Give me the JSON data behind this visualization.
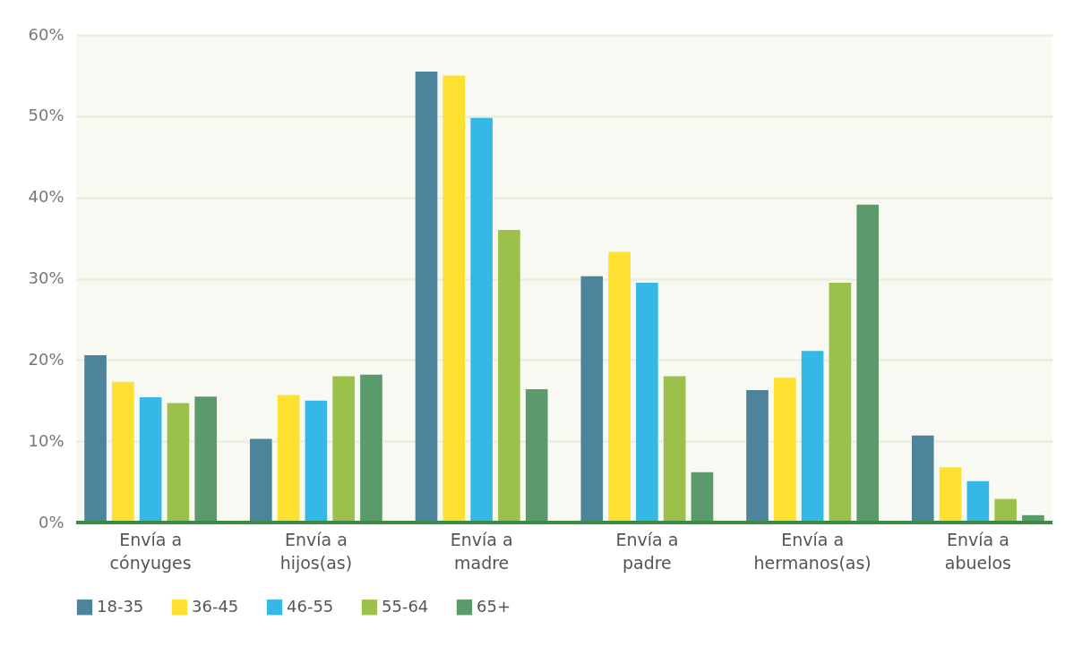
{
  "chart_data": {
    "type": "bar",
    "categories": [
      "Envía a\ncónyuges",
      "Envía a\nhijos(as)",
      "Envía a\nmadre",
      "Envía a\npadre",
      "Envía a\nhermanos(as)",
      "Envía a\nabuelos"
    ],
    "series": [
      {
        "name": "18-35",
        "color": "#4e839c",
        "values": [
          20.6,
          10.3,
          55.5,
          30.3,
          16.3,
          10.7
        ]
      },
      {
        "name": "36-45",
        "color": "#fde030",
        "values": [
          17.3,
          15.7,
          55.0,
          33.3,
          17.8,
          6.8
        ]
      },
      {
        "name": "46-55",
        "color": "#35b8e6",
        "values": [
          15.4,
          15.0,
          49.8,
          29.5,
          21.1,
          5.1
        ]
      },
      {
        "name": "55-64",
        "color": "#9bc14a",
        "values": [
          14.7,
          18.0,
          36.0,
          18.0,
          29.5,
          2.9
        ]
      },
      {
        "name": "65+",
        "color": "#5b9a6a",
        "values": [
          15.5,
          18.2,
          16.4,
          6.2,
          39.1,
          0.9
        ]
      }
    ],
    "ylim": [
      0,
      60
    ],
    "yticks": [
      {
        "value": 0,
        "label": "0%"
      },
      {
        "value": 10,
        "label": "10%"
      },
      {
        "value": 20,
        "label": "20%"
      },
      {
        "value": 30,
        "label": "30%"
      },
      {
        "value": 40,
        "label": "40%"
      },
      {
        "value": 50,
        "label": "50%"
      },
      {
        "value": 60,
        "label": "60%"
      }
    ],
    "grid": "y",
    "legend": "bottom"
  }
}
